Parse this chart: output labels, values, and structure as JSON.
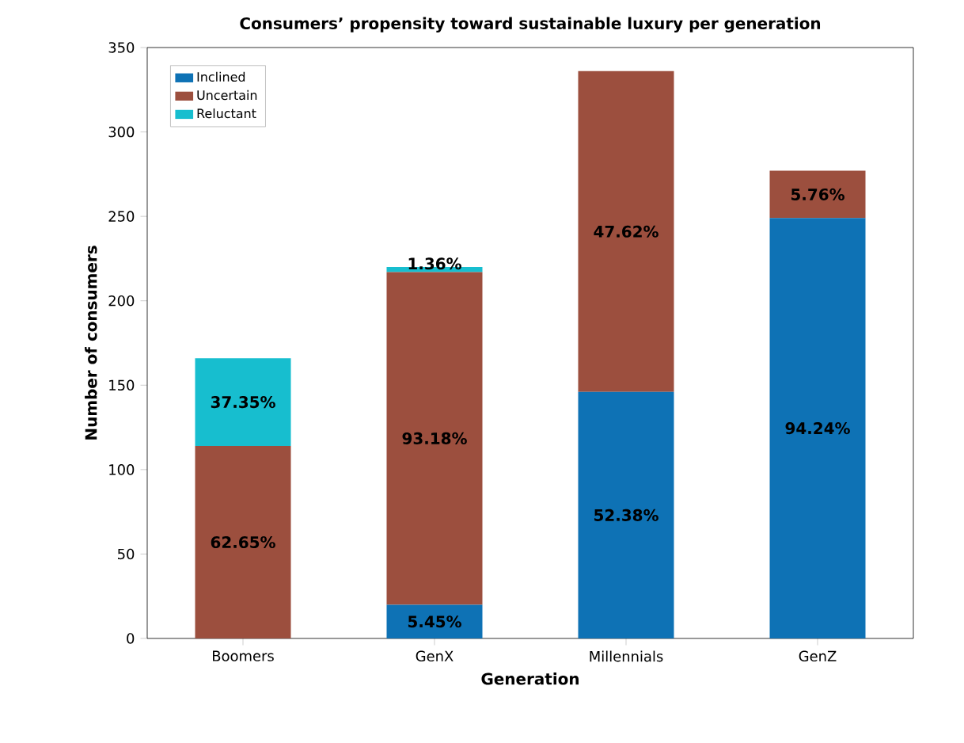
{
  "chart_data": {
    "type": "bar",
    "title": "Consumers’ propensity toward sustainable luxury per generation",
    "xlabel": "Generation",
    "ylabel": "Number of consumers",
    "categories": [
      "Boomers",
      "GenX",
      "Millennials",
      "GenZ"
    ],
    "stacked": true,
    "series": [
      {
        "name": "Inclined",
        "color": "#0e72b5",
        "values": [
          0,
          20,
          146,
          249
        ]
      },
      {
        "name": "Uncertain",
        "color": "#9c4f3e",
        "values": [
          114,
          197,
          190,
          28
        ]
      },
      {
        "name": "Reluctant",
        "color": "#17becf",
        "values": [
          52,
          3,
          0,
          0
        ]
      }
    ],
    "annotations": [
      "5.45%",
      "52.38%",
      "94.24%",
      "62.65%",
      "93.18%",
      "47.62%",
      "5.76%",
      "37.35%",
      "1.36%"
    ],
    "ylim": [
      0,
      350
    ],
    "yticks": [
      0,
      50,
      100,
      150,
      200,
      250,
      300,
      350
    ],
    "legend": "top left"
  }
}
